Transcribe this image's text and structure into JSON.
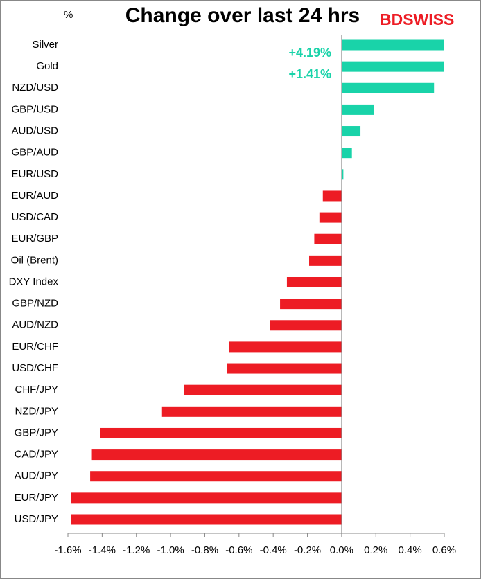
{
  "chart_data": {
    "type": "hbar",
    "title": "Change over last 24 hrs",
    "unit_label": "%",
    "logo": "BDSWISS",
    "categories": [
      "Silver",
      "Gold",
      "NZD/USD",
      "GBP/USD",
      "AUD/USD",
      "GBP/AUD",
      "EUR/USD",
      "EUR/AUD",
      "USD/CAD",
      "EUR/GBP",
      "Oil (Brent)",
      "DXY Index",
      "GBP/NZD",
      "AUD/NZD",
      "EUR/CHF",
      "USD/CHF",
      "CHF/JPY",
      "NZD/JPY",
      "GBP/JPY",
      "CAD/JPY",
      "AUD/JPY",
      "EUR/JPY",
      "USD/JPY"
    ],
    "values": [
      4.19,
      1.41,
      0.54,
      0.19,
      0.11,
      0.06,
      0.01,
      -0.11,
      -0.13,
      -0.16,
      -0.19,
      -0.32,
      -0.36,
      -0.42,
      -0.66,
      -0.67,
      -0.92,
      -1.05,
      -1.41,
      -1.46,
      -1.47,
      -1.58,
      -1.58
    ],
    "value_labels": [
      "+4.19%",
      "+1.41%",
      null,
      null,
      null,
      null,
      null,
      null,
      null,
      null,
      null,
      null,
      null,
      null,
      null,
      null,
      null,
      null,
      null,
      null,
      null,
      null,
      null
    ],
    "positive_color": "#19d3a9",
    "negative_color": "#ed1c24",
    "xlim": [
      -1.6,
      0.6
    ],
    "xticks": [
      {
        "value": -1.6,
        "label": "-1.6%"
      },
      {
        "value": -1.4,
        "label": "-1.4%"
      },
      {
        "value": -1.2,
        "label": "-1.2%"
      },
      {
        "value": -1.0,
        "label": "-1.0%"
      },
      {
        "value": -0.8,
        "label": "-0.8%"
      },
      {
        "value": -0.6,
        "label": "-0.6%"
      },
      {
        "value": -0.4,
        "label": "-0.4%"
      },
      {
        "value": -0.2,
        "label": "-0.2%"
      },
      {
        "value": 0,
        "label": "0.0%"
      },
      {
        "value": 0.2,
        "label": "0.2%"
      },
      {
        "value": 0.4,
        "label": "0.4%"
      },
      {
        "value": 0.6,
        "label": "0.6%"
      }
    ]
  }
}
